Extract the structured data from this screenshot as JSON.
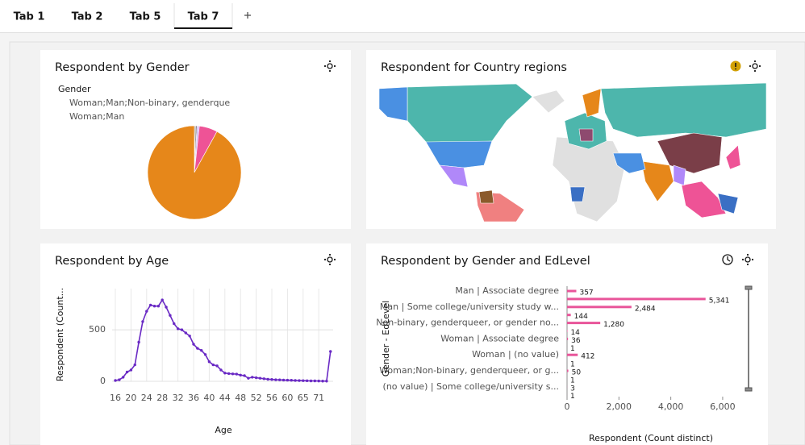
{
  "tabs": [
    "Tab 1",
    "Tab 2",
    "Tab 5",
    "Tab 7"
  ],
  "active_tab": 3,
  "chart_data": [
    {
      "type": "pie",
      "title": "Respondent by Gender",
      "legend_title": "Gender",
      "categories": [
        "Woman;Man;Non-binary, genderque",
        "Woman;Man",
        null,
        null,
        null
      ],
      "values": [
        0.4,
        0.5,
        0.8,
        6.3,
        92
      ],
      "colors": [
        "#a8a8a8",
        "#6f6f6f",
        "#d4bbff",
        "#ee5396",
        "#e6871a"
      ]
    },
    {
      "type": "map",
      "title": "Respondent for Country regions"
    },
    {
      "type": "line",
      "title": "Respondent by Age",
      "x_label": "Age",
      "y_label": "Respondent (Count...",
      "categories": [
        "16",
        null,
        null,
        null,
        "20",
        null,
        null,
        null,
        "24",
        null,
        null,
        null,
        "28",
        null,
        null,
        null,
        "32",
        null,
        null,
        null,
        "36",
        null,
        null,
        null,
        "40",
        null,
        null,
        null,
        "44",
        null,
        null,
        null,
        "48",
        null,
        null,
        null,
        "52",
        null,
        null,
        null,
        "56",
        null,
        null,
        null,
        "60",
        null,
        null,
        null,
        "65",
        null,
        null,
        null,
        "71",
        null,
        null,
        null
      ],
      "values": [
        8,
        15,
        40,
        90,
        110,
        160,
        380,
        580,
        680,
        740,
        730,
        730,
        790,
        720,
        640,
        560,
        510,
        500,
        470,
        440,
        360,
        320,
        300,
        260,
        190,
        160,
        150,
        110,
        80,
        75,
        72,
        70,
        60,
        55,
        30,
        40,
        35,
        30,
        25,
        20,
        18,
        15,
        14,
        12,
        11,
        10,
        8,
        7,
        6,
        5,
        4,
        4,
        3,
        2,
        2,
        290
      ],
      "color": "#6929c4",
      "ylim": [
        0,
        900
      ],
      "yticks": [
        0,
        500
      ],
      "grid": true
    },
    {
      "type": "barh",
      "title": "Respondent by Gender and EdLevel",
      "x_label": "Respondent (Count distinct)",
      "y_label": "Gender - EdLevel",
      "categories": [
        "Man | Associate degree",
        null,
        "Man | Some college/university study w...",
        null,
        "Non-binary, genderqueer, or gender no...",
        null,
        "Woman | Associate degree",
        null,
        "Woman | (no value)",
        null,
        "Woman;Non-binary, genderqueer, or g...",
        null,
        "(no value) | Some college/university s...",
        null
      ],
      "values": [
        357,
        5341,
        2484,
        144,
        1280,
        14,
        36,
        1,
        412,
        1,
        50,
        1,
        3,
        1
      ],
      "value_labels": [
        "357",
        "5,341",
        "2,484",
        "144",
        "1,280",
        "14",
        "36",
        "1",
        "412",
        "1",
        "50",
        "1",
        "3",
        "1"
      ],
      "color": "#e8559a",
      "xlim": [
        0,
        6500
      ],
      "xticks": [
        0,
        {
          "value": 2000,
          "label": "2,000"
        },
        {
          "value": 4000,
          "label": "4,000"
        },
        {
          "value": 6000,
          "label": "6,000"
        }
      ]
    }
  ]
}
